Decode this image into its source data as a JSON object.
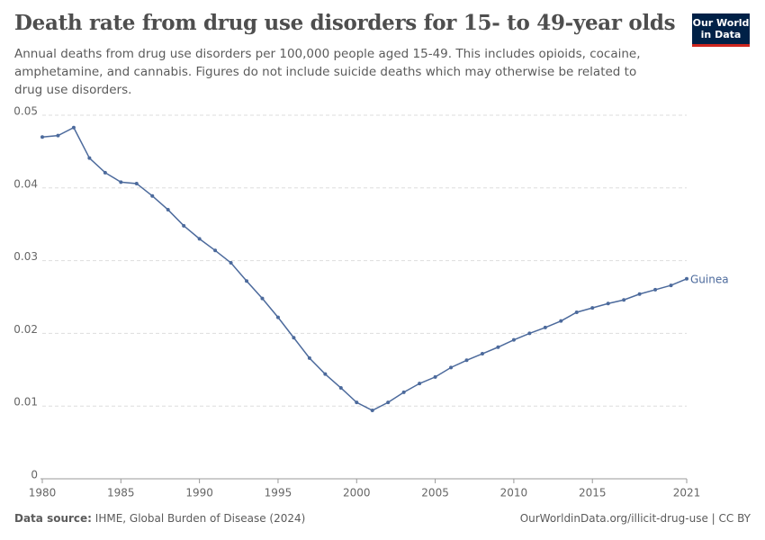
{
  "chart_data": {
    "type": "line",
    "title": "Death rate from drug use disorders for 15- to 49-year olds",
    "subtitle": "Annual deaths from drug use disorders per 100,000 people aged 15-49. This includes opioids, cocaine, amphetamine, and cannabis. Figures do not include suicide deaths which may otherwise be related to drug use disorders.",
    "x": [
      1980,
      1981,
      1982,
      1983,
      1984,
      1985,
      1986,
      1987,
      1988,
      1989,
      1990,
      1991,
      1992,
      1993,
      1994,
      1995,
      1996,
      1997,
      1998,
      1999,
      2000,
      2001,
      2002,
      2003,
      2004,
      2005,
      2006,
      2007,
      2008,
      2009,
      2010,
      2011,
      2012,
      2013,
      2014,
      2015,
      2016,
      2017,
      2018,
      2019,
      2020,
      2021
    ],
    "series": [
      {
        "name": "Guinea",
        "color": "#4c6a9c",
        "values": [
          0.047,
          0.0472,
          0.0483,
          0.0441,
          0.0421,
          0.0408,
          0.0406,
          0.0389,
          0.037,
          0.0348,
          0.033,
          0.0314,
          0.0297,
          0.0272,
          0.0248,
          0.0222,
          0.0194,
          0.0166,
          0.0144,
          0.0125,
          0.0105,
          0.0094,
          0.0105,
          0.0119,
          0.0131,
          0.014,
          0.0153,
          0.0163,
          0.0172,
          0.0181,
          0.0191,
          0.02,
          0.0208,
          0.0217,
          0.0229,
          0.0235,
          0.0241,
          0.0246,
          0.0254,
          0.026,
          0.0266,
          0.0275
        ]
      }
    ],
    "xlim": [
      1980,
      2021
    ],
    "xticks": [
      1980,
      1985,
      1990,
      1995,
      2000,
      2005,
      2010,
      2015,
      2021
    ],
    "ylim": [
      0,
      0.05
    ],
    "yticks": [
      0,
      0.01,
      0.02,
      0.03,
      0.04,
      0.05
    ],
    "grid": true,
    "source_label": "Data source:",
    "source": "IHME, Global Burden of Disease (2024)",
    "url": "OurWorldinData.org/illicit-drug-use | CC BY"
  },
  "logo": [
    "Our World",
    "in Data"
  ]
}
